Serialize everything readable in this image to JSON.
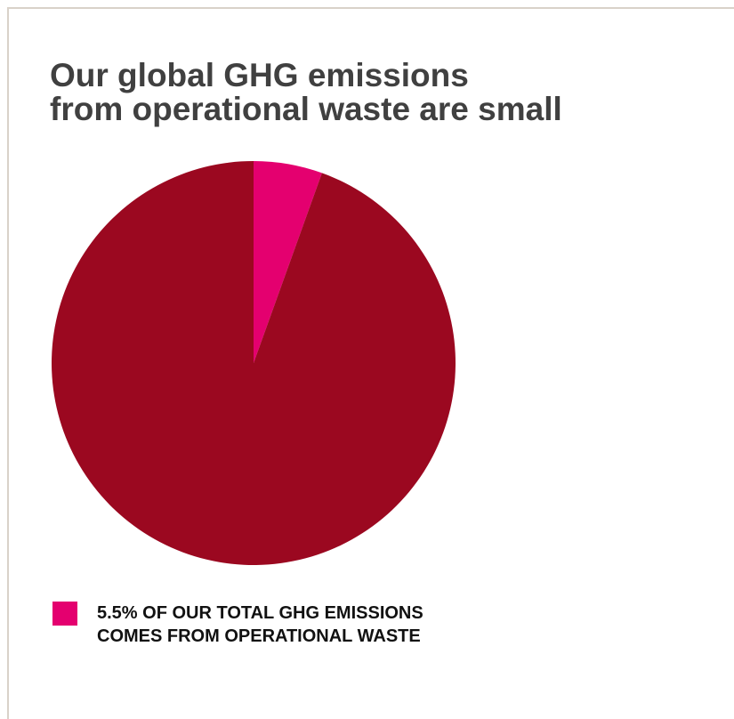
{
  "chart_data": {
    "type": "pie",
    "title_lines": [
      "Our global GHG emissions",
      "from operational waste are small"
    ],
    "slices": [
      {
        "name": "Operational waste",
        "value": 5.5,
        "color": "#e4006f"
      },
      {
        "name": "",
        "value": 94.5,
        "color": "#9b0820"
      }
    ],
    "legend": {
      "placement": "bottom-left",
      "color": "#e4006f",
      "lines": [
        "5.5% OF OUR TOTAL GHG EMISSIONS",
        "COMES FROM OPERATIONAL WASTE"
      ]
    }
  },
  "colors": {
    "title": "#404040",
    "frame": "#d9d2c9",
    "legend_text": "#111111"
  }
}
